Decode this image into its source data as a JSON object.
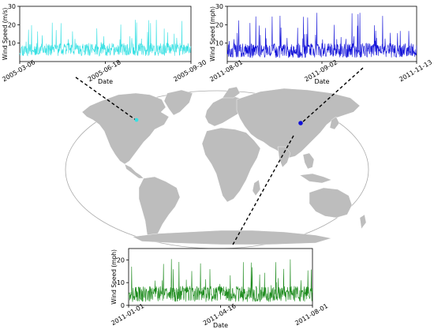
{
  "chart_data": [
    {
      "type": "line",
      "id": "top-left",
      "xlabel": "Date",
      "ylabel": "Wind Speed (m/s)",
      "ylim": [
        0,
        30
      ],
      "yticks": [
        10,
        20,
        30
      ],
      "xticks": [
        "2005-03-06",
        "2005-06-18",
        "2005-09-30"
      ],
      "x_range": [
        "2005-03-06",
        "2005-09-30"
      ],
      "series": [
        {
          "color": "#35e0e3",
          "style": "dense hourly wind record, mostly 3-12 with gusts near 23",
          "seed": 11,
          "base": 6.5,
          "spread": 3.5,
          "peak": 23
        }
      ]
    },
    {
      "type": "line",
      "id": "top-right",
      "xlabel": "Date",
      "ylabel": "Wind Speed (mph)",
      "ylim": [
        0,
        30
      ],
      "yticks": [
        10,
        20,
        30
      ],
      "xticks": [
        "2011-08-01",
        "2011-09-02",
        "2011-11-13"
      ],
      "x_range": [
        "2011-08-01",
        "2011-11-13"
      ],
      "series": [
        {
          "color": "#1010d8",
          "style": "dense hourly wind record, mostly 3-12 with gusts near 27",
          "seed": 23,
          "base": 6.0,
          "spread": 4.0,
          "peak": 27
        }
      ]
    },
    {
      "type": "line",
      "id": "bottom",
      "xlabel": "Date",
      "ylabel": "Wind Speed (mph)",
      "ylim": [
        0,
        25
      ],
      "yticks": [
        0,
        10,
        20
      ],
      "xticks": [
        "2011-01-01",
        "2011-04-16",
        "2011-08-01"
      ],
      "x_range": [
        "2011-01-01",
        "2011-08-01"
      ],
      "series": [
        {
          "color": "#1a8a1a",
          "style": "dense hourly wind record, mostly 2-10 with gusts near 21",
          "seed": 37,
          "base": 5.0,
          "spread": 3.5,
          "peak": 21
        }
      ]
    }
  ],
  "map": {
    "ocean_fill": "#ffffff",
    "land_fill": "#bdbdbd",
    "outline_color": "#aaaaaa",
    "connector_color": "#000000",
    "markers": [
      {
        "name": "north-america-station",
        "color": "#35e0e3",
        "label_ref": "top-left"
      },
      {
        "name": "china-station",
        "color": "#1010d8",
        "label_ref": "top-right"
      }
    ]
  }
}
